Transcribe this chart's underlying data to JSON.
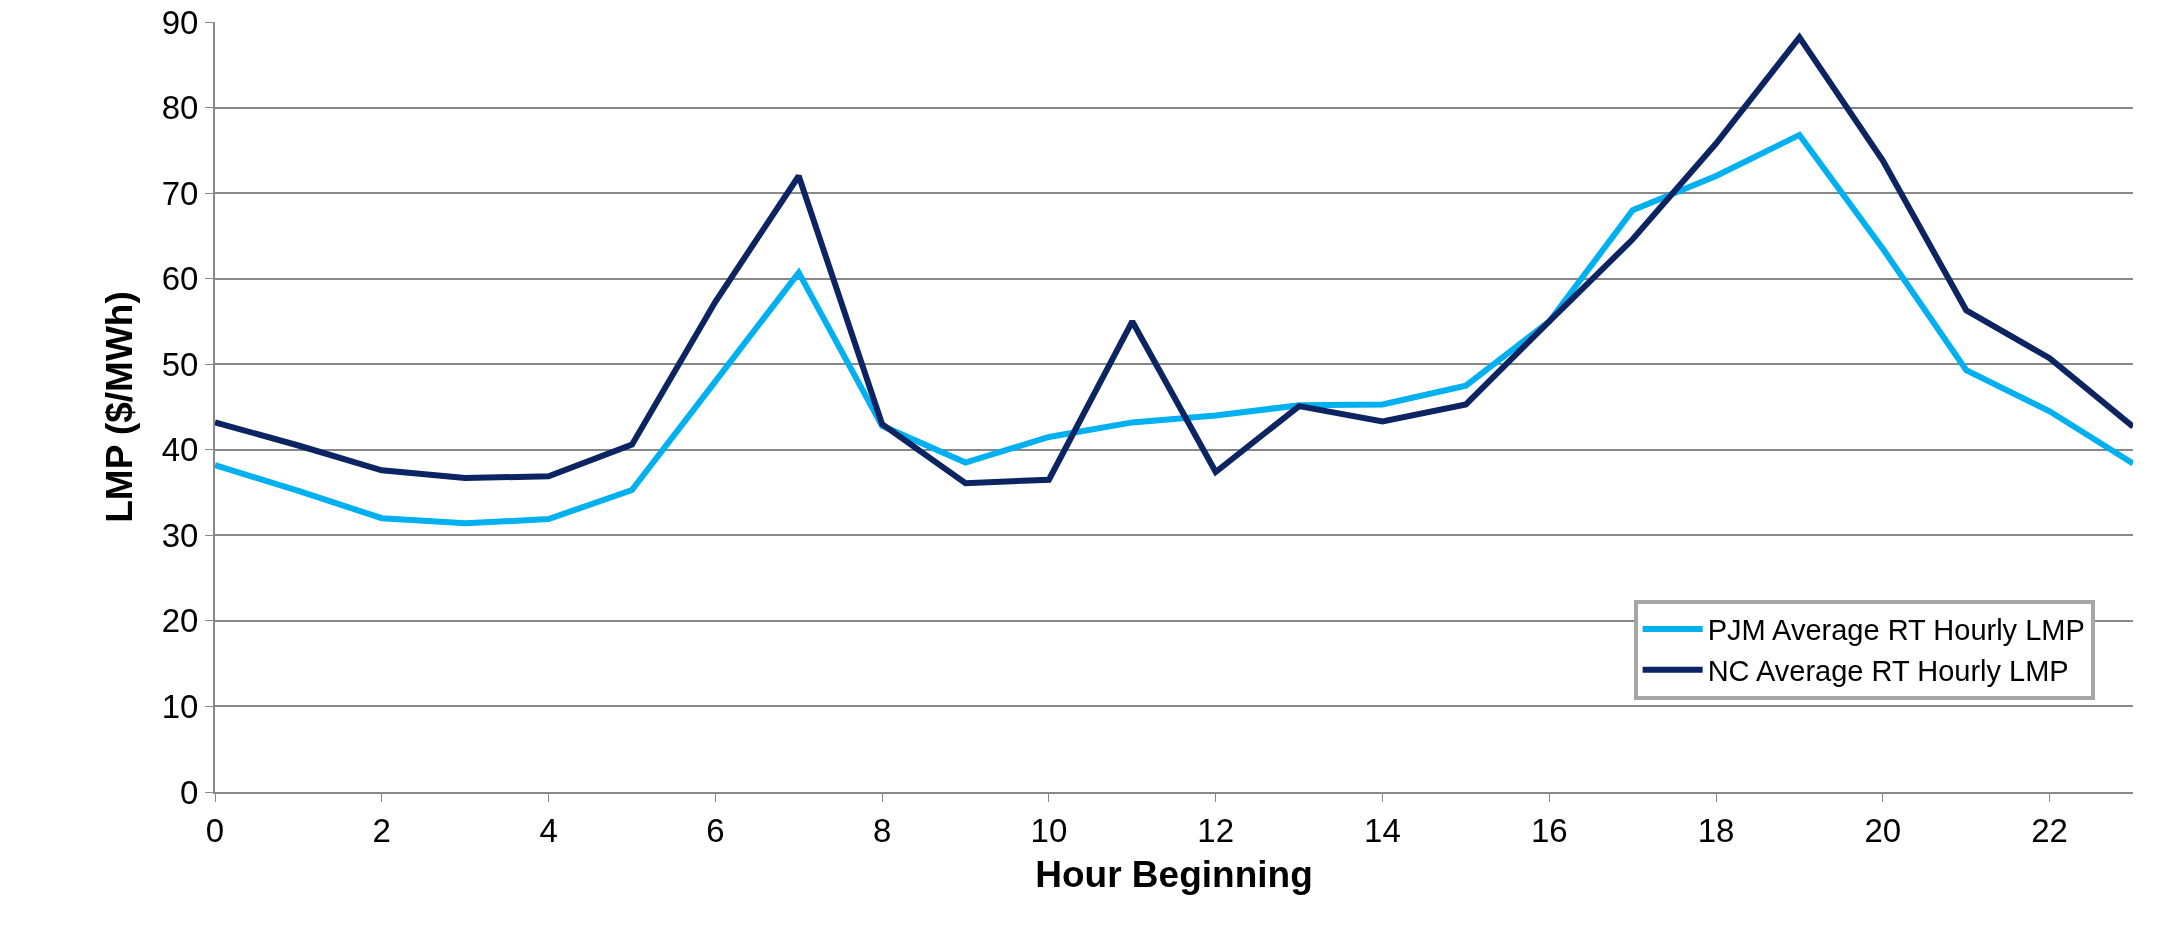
{
  "chart_data": {
    "type": "line",
    "xlabel": "Hour Beginning",
    "ylabel": "LMP ($/MWh)",
    "x": [
      0,
      1,
      2,
      3,
      4,
      5,
      6,
      7,
      8,
      9,
      10,
      11,
      12,
      13,
      14,
      15,
      16,
      17,
      18,
      19,
      20,
      21,
      22,
      23
    ],
    "series": [
      {
        "name": "PJM Average RT Hourly LMP",
        "color": "#00b0f0",
        "values": [
          38.2,
          35.2,
          32,
          31.4,
          31.9,
          35.3,
          48,
          60.7,
          42.8,
          38.5,
          41.5,
          43.2,
          44,
          45.2,
          45.3,
          47.5,
          55,
          68,
          72,
          76.8,
          63.5,
          49.3,
          44.5,
          38.4
        ]
      },
      {
        "name": "NC Average RT Hourly LMP",
        "color": "#0c2461",
        "values": [
          43.2,
          40.5,
          37.6,
          36.7,
          36.9,
          40.6,
          57.3,
          72,
          43,
          36.1,
          36.5,
          55,
          37.4,
          45.1,
          43.3,
          45.3,
          55,
          64.6,
          75.8,
          88.2,
          73.8,
          56.3,
          50.7,
          42.7
        ]
      }
    ],
    "xlim": [
      0,
      23
    ],
    "xticks": [
      0,
      2,
      4,
      6,
      8,
      10,
      12,
      14,
      16,
      18,
      20,
      22
    ],
    "ylim": [
      0,
      90
    ],
    "yticks": [
      0,
      10,
      20,
      30,
      40,
      50,
      60,
      70,
      80,
      90
    ],
    "grid": "y",
    "legend": "bottom right",
    "marker": "none",
    "line_style": "solid"
  }
}
